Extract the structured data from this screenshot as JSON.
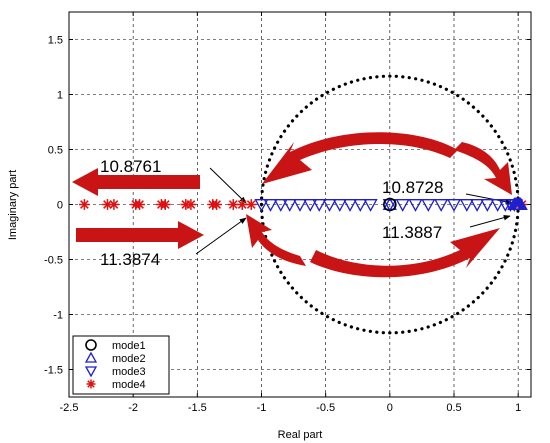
{
  "chart_data": {
    "type": "scatter",
    "xlabel": "Real part",
    "ylabel": "Imaginary part",
    "xlim": [
      -2.5,
      1.1
    ],
    "ylim": [
      -1.75,
      1.75
    ],
    "xticks": [
      -2.5,
      -2,
      -1.5,
      -1,
      -0.5,
      0,
      0.5,
      1
    ],
    "xtick_labels": [
      "-2.5",
      "-2",
      "-1.5",
      "-1",
      "-0.5",
      "0",
      "0.5",
      "1"
    ],
    "yticks": [
      -1.5,
      -1,
      -0.5,
      0,
      0.5,
      1,
      1.5
    ],
    "ytick_labels": [
      "-1.5",
      "-1",
      "-0.5",
      "0",
      "0.5",
      "1",
      "1.5"
    ],
    "grid": true,
    "legend_position": "bottom-left",
    "unit_circle": {
      "radius": 1,
      "style": "dotted",
      "color": "#000000"
    },
    "colors": {
      "mode1": "#000000",
      "mode2": "#1f1fd0",
      "mode3": "#1f1fd0",
      "mode4": "#e01010",
      "arrows": "#c81414"
    },
    "series": [
      {
        "name": "mode1",
        "marker": "circle",
        "points": [
          [
            0,
            0
          ]
        ]
      },
      {
        "name": "mode2",
        "marker": "triangle-up",
        "points": [
          [
            0,
            0
          ],
          [
            0.97,
            0
          ],
          [
            0.98,
            0
          ],
          [
            0.99,
            0
          ],
          [
            1.0,
            0
          ],
          [
            1.01,
            0
          ],
          [
            1.02,
            0
          ]
        ]
      },
      {
        "name": "mode3",
        "marker": "triangle-down",
        "points": [
          [
            -1.0,
            0
          ],
          [
            -0.93,
            0
          ],
          [
            -0.85,
            0
          ],
          [
            -0.78,
            0
          ],
          [
            -0.7,
            0
          ],
          [
            -0.62,
            0
          ],
          [
            -0.55,
            0
          ],
          [
            -0.47,
            0
          ],
          [
            -0.39,
            0
          ],
          [
            -0.31,
            0
          ],
          [
            -0.23,
            0
          ],
          [
            -0.15,
            0
          ],
          [
            0.0,
            0
          ],
          [
            0.1,
            0
          ],
          [
            0.2,
            0
          ],
          [
            0.3,
            0
          ],
          [
            0.4,
            0
          ],
          [
            0.5,
            0
          ],
          [
            0.6,
            0
          ],
          [
            0.68,
            0
          ],
          [
            0.76,
            0
          ],
          [
            0.84,
            0
          ],
          [
            0.9,
            0
          ],
          [
            0.94,
            0
          ],
          [
            0.97,
            0
          ]
        ]
      },
      {
        "name": "mode4",
        "marker": "asterisk",
        "points": [
          [
            -2.38,
            0
          ],
          [
            -2.2,
            0
          ],
          [
            -2.15,
            0
          ],
          [
            -1.98,
            0
          ],
          [
            -1.95,
            0
          ],
          [
            -1.78,
            0
          ],
          [
            -1.75,
            0
          ],
          [
            -1.59,
            0
          ],
          [
            -1.55,
            0
          ],
          [
            -1.38,
            0
          ],
          [
            -1.35,
            0
          ],
          [
            -1.22,
            0
          ],
          [
            -1.15,
            0
          ],
          [
            -1.08,
            0
          ],
          [
            1.0,
            0
          ],
          [
            1.03,
            0
          ]
        ]
      }
    ],
    "annotations": [
      {
        "text": "10.8761",
        "target": [
          -1.0,
          0
        ]
      },
      {
        "text": "11.3874",
        "target": [
          -1.0,
          0
        ]
      },
      {
        "text": "10.8728",
        "target": [
          1.0,
          0
        ]
      },
      {
        "text": "11.3887",
        "target": [
          1.0,
          0
        ]
      }
    ]
  }
}
